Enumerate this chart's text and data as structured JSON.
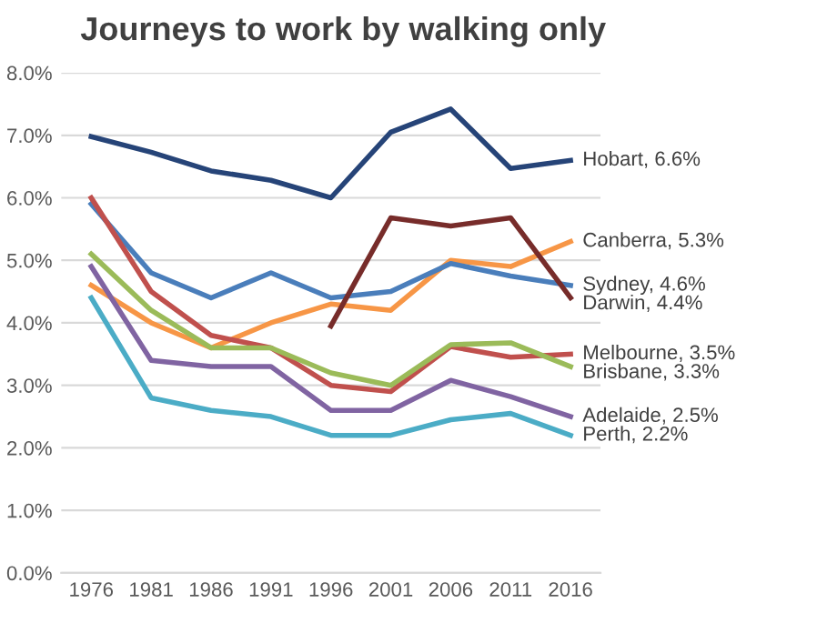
{
  "chart_data": {
    "type": "line",
    "title": "Journeys to work by walking only",
    "categories": [
      "1976",
      "1981",
      "1986",
      "1991",
      "1996",
      "2001",
      "2006",
      "2011",
      "2016"
    ],
    "series": [
      {
        "name": "Hobart, 6.6%",
        "color": "#264478",
        "values": [
          6.98,
          6.73,
          6.43,
          6.28,
          6.0,
          7.05,
          7.42,
          6.47,
          6.6
        ]
      },
      {
        "name": "Canberra, 5.3%",
        "color": "#f79646",
        "values": [
          4.6,
          4.0,
          3.6,
          4.0,
          4.3,
          4.2,
          5.0,
          4.9,
          5.3
        ]
      },
      {
        "name": "Sydney, 4.6%",
        "color": "#4a7ebb",
        "values": [
          5.9,
          4.8,
          4.4,
          4.8,
          4.4,
          4.5,
          4.95,
          4.75,
          4.6
        ]
      },
      {
        "name": "Darwin, 4.4%",
        "color": "#772c2a",
        "values": [
          null,
          null,
          null,
          null,
          3.95,
          5.68,
          5.55,
          5.68,
          4.4
        ]
      },
      {
        "name": "Melbourne, 3.5%",
        "color": "#c0504d",
        "values": [
          6.0,
          4.5,
          3.8,
          3.6,
          3.0,
          2.9,
          3.62,
          3.45,
          3.5
        ]
      },
      {
        "name": "Brisbane, 3.3%",
        "color": "#9bbb59",
        "values": [
          5.1,
          4.2,
          3.6,
          3.6,
          3.2,
          3.0,
          3.65,
          3.68,
          3.3
        ]
      },
      {
        "name": "Adelaide, 2.5%",
        "color": "#8064a2",
        "values": [
          4.9,
          3.4,
          3.3,
          3.3,
          2.6,
          2.6,
          3.08,
          2.82,
          2.5
        ]
      },
      {
        "name": "Perth, 2.2%",
        "color": "#4bacc6",
        "values": [
          4.4,
          2.8,
          2.6,
          2.5,
          2.2,
          2.2,
          2.45,
          2.55,
          2.2
        ]
      }
    ],
    "ylim": [
      0,
      8
    ],
    "yticks": [
      {
        "value": 0,
        "label": "0.0%"
      },
      {
        "value": 1,
        "label": "1.0%"
      },
      {
        "value": 2,
        "label": "2.0%"
      },
      {
        "value": 3,
        "label": "3.0%"
      },
      {
        "value": 4,
        "label": "4.0%"
      },
      {
        "value": 5,
        "label": "5.0%"
      },
      {
        "value": 6,
        "label": "6.0%"
      },
      {
        "value": 7,
        "label": "7.0%"
      },
      {
        "value": 8,
        "label": "8.0%"
      }
    ],
    "grid": "y",
    "legend": false,
    "marker": "none",
    "line_style": "solid"
  }
}
